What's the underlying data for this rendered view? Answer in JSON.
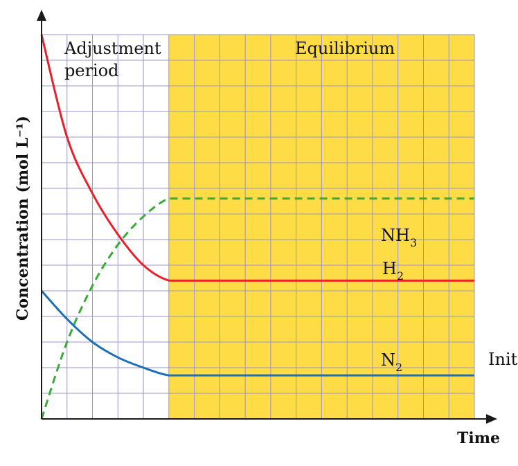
{
  "chart_data": {
    "type": "line",
    "title": "",
    "xlabel": "Time",
    "ylabel": "Concentration (mol L⁻¹)",
    "grid": true,
    "x": [
      0,
      1,
      2,
      3,
      4,
      5,
      6,
      7,
      8,
      9,
      10,
      11,
      12,
      13,
      14,
      15,
      16,
      17
    ],
    "xlim": [
      0,
      17
    ],
    "ylim": [
      0,
      15
    ],
    "regions": [
      {
        "label_lines": [
          "Adjustment",
          "period"
        ],
        "x_range": [
          0,
          5
        ],
        "color": "#ffffff"
      },
      {
        "label_lines": [
          "Equilibrium"
        ],
        "x_range": [
          5,
          17
        ],
        "color": "#fddc45"
      }
    ],
    "series": [
      {
        "name": "NH3",
        "label_main": "NH",
        "label_sub": "3",
        "color": "#3aaa3a",
        "style": "dashed",
        "values": [
          0,
          3.0,
          5.2,
          6.8,
          7.9,
          8.6,
          8.6,
          8.6,
          8.6,
          8.6,
          8.6,
          8.6,
          8.6,
          8.6,
          8.6,
          8.6,
          8.6,
          8.6
        ]
      },
      {
        "name": "H2",
        "label_main": "H",
        "label_sub": "2",
        "color": "#e8202a",
        "style": "solid",
        "values": [
          15.0,
          11.0,
          8.8,
          7.2,
          6.0,
          5.4,
          5.4,
          5.4,
          5.4,
          5.4,
          5.4,
          5.4,
          5.4,
          5.4,
          5.4,
          5.4,
          5.4,
          5.4
        ]
      },
      {
        "name": "N2",
        "label_main": "N",
        "label_sub": "2",
        "color": "#1f6fb5",
        "style": "solid",
        "values": [
          5.0,
          3.9,
          3.0,
          2.4,
          2.0,
          1.7,
          1.7,
          1.7,
          1.7,
          1.7,
          1.7,
          1.7,
          1.7,
          1.7,
          1.7,
          1.7,
          1.7,
          1.7
        ]
      }
    ],
    "annotations": [
      "Initi"
    ]
  },
  "colors": {
    "grid": "#9a94cc",
    "axis": "#1a1a1a",
    "equilibrium_fill": "#fddc45"
  }
}
